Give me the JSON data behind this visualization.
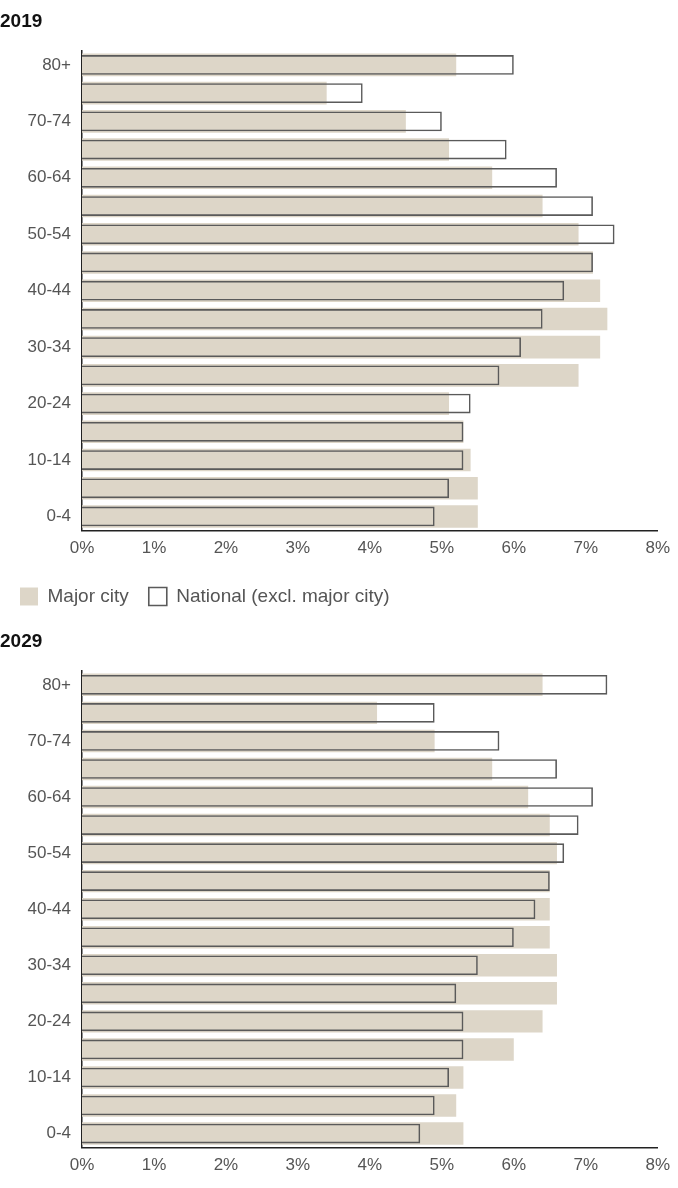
{
  "chart_data": [
    {
      "type": "bar",
      "title": "2019",
      "orientation": "horizontal",
      "grid": false,
      "legend": "bottom",
      "categories": [
        "80+",
        null,
        "70-74",
        null,
        "60-64",
        null,
        "50-54",
        null,
        "40-44",
        null,
        "30-34",
        null,
        "20-24",
        null,
        "10-14",
        null,
        "0-4"
      ],
      "series": [
        {
          "name": "Major city",
          "color": "#ddd6c8",
          "values": [
            5.2,
            3.4,
            4.5,
            5.1,
            5.7,
            6.4,
            6.9,
            7.1,
            7.2,
            7.3,
            7.2,
            6.9,
            5.1,
            5.3,
            5.4,
            5.5,
            5.5
          ]
        },
        {
          "name": "National (excl. major city)",
          "color": "#5a5a5a",
          "values": [
            6.0,
            3.9,
            5.0,
            5.9,
            6.6,
            7.1,
            7.4,
            7.1,
            6.7,
            6.4,
            6.1,
            5.8,
            5.4,
            5.3,
            5.3,
            5.1,
            4.9
          ]
        }
      ],
      "xlim": [
        0,
        8
      ],
      "xticks": [
        {
          "value": 0,
          "label": "0%"
        },
        {
          "value": 1,
          "label": "1%"
        },
        {
          "value": 2,
          "label": "2%"
        },
        {
          "value": 3,
          "label": "3%"
        },
        {
          "value": 4,
          "label": "4%"
        },
        {
          "value": 5,
          "label": "5%"
        },
        {
          "value": 6,
          "label": "6%"
        },
        {
          "value": 7,
          "label": "7%"
        },
        {
          "value": 8,
          "label": "8%"
        }
      ]
    },
    {
      "type": "bar",
      "title": "2029",
      "orientation": "horizontal",
      "grid": false,
      "categories": [
        "80+",
        null,
        "70-74",
        null,
        "60-64",
        null,
        "50-54",
        null,
        "40-44",
        null,
        "30-34",
        null,
        "20-24",
        null,
        "10-14",
        null,
        "0-4"
      ],
      "series": [
        {
          "color": "#ddd6c8",
          "values": [
            6.4,
            4.1,
            4.9,
            5.7,
            6.2,
            6.5,
            6.6,
            6.5,
            6.5,
            6.5,
            6.6,
            6.6,
            6.4,
            6.0,
            5.3,
            5.2,
            5.3
          ]
        },
        {
          "color": "#5a5a5a",
          "values": [
            7.3,
            4.9,
            5.8,
            6.6,
            7.1,
            6.9,
            6.7,
            6.5,
            6.3,
            6.0,
            5.5,
            5.2,
            5.3,
            5.3,
            5.1,
            4.9,
            4.7
          ]
        }
      ],
      "xlim": [
        0,
        8
      ],
      "xticks": [
        {
          "value": 0,
          "label": "0%"
        },
        {
          "value": 1,
          "label": "1%"
        },
        {
          "value": 2,
          "label": "2%"
        },
        {
          "value": 3,
          "label": "3%"
        },
        {
          "value": 4,
          "label": "4%"
        },
        {
          "value": 5,
          "label": "5%"
        },
        {
          "value": 6,
          "label": "6%"
        },
        {
          "value": 7,
          "label": "7%"
        },
        {
          "value": 8,
          "label": "8%"
        }
      ]
    }
  ]
}
